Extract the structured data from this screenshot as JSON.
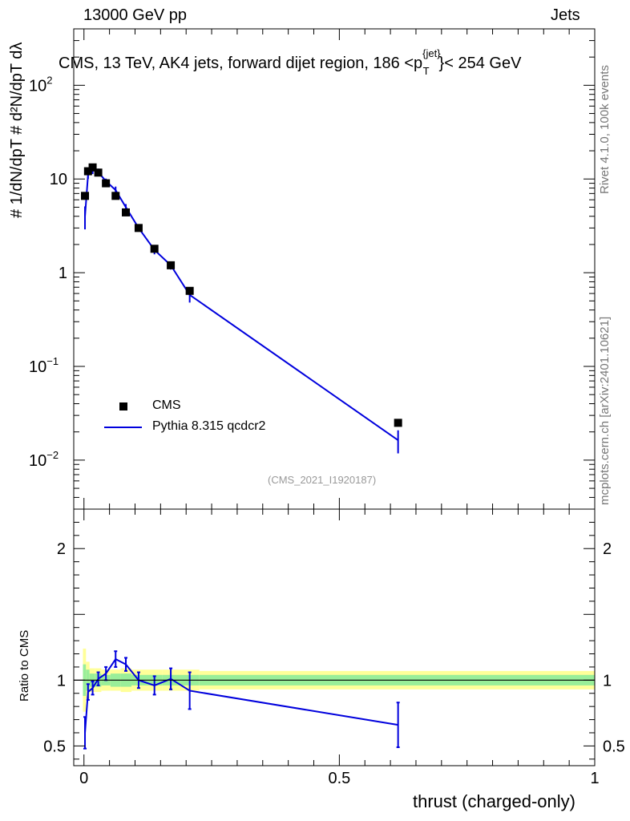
{
  "header": {
    "left_label": "13000 GeV pp",
    "right_label": "Jets"
  },
  "side_labels": {
    "rivet": "Rivet 4.1.0,  100k events",
    "mcplots": "mcplots.cern.ch [arXiv:2401.10621]"
  },
  "chart_data": {
    "type": "line",
    "title": "CMS, 13 TeV, AK4 jets, forward dijet region, 186 <p",
    "title_sup": "{jet}",
    "title_sub": "T",
    "title_end": "}< 254 GeV",
    "analysis_ref": "(CMS_2021_I1920187)",
    "ylabel_main": "# 1/dN/dpT # d²N/dpT dλ",
    "ylabel_ratio": "Ratio to CMS",
    "xlabel": "thrust (charged-only)",
    "xlim": [
      -0.02,
      1.0
    ],
    "main_panel": {
      "yscale": "log",
      "ylim": [
        0.003,
        400
      ],
      "y_ticks": [
        {
          "value": 0.01,
          "label_base": "10",
          "label_exp": "−2"
        },
        {
          "value": 0.1,
          "label_base": "10",
          "label_exp": "−1"
        },
        {
          "value": 1,
          "label_base": "1",
          "label_exp": ""
        },
        {
          "value": 10,
          "label_base": "10",
          "label_exp": ""
        },
        {
          "value": 100,
          "label_base": "10",
          "label_exp": "2"
        }
      ]
    },
    "ratio_panel": {
      "ylim": [
        0.35,
        2.3
      ],
      "y_ticks": [
        {
          "value": 0.5,
          "label": "0.5"
        },
        {
          "value": 1,
          "label": "1"
        },
        {
          "value": 2,
          "label": "2"
        }
      ]
    },
    "x_ticks": [
      {
        "value": 0,
        "label": "0"
      },
      {
        "value": 0.5,
        "label": "0.5"
      },
      {
        "value": 1,
        "label": "1"
      }
    ],
    "series": [
      {
        "name": "CMS",
        "kind": "markers",
        "color": "#000000",
        "x": [
          0.002,
          0.008,
          0.017,
          0.028,
          0.043,
          0.062,
          0.082,
          0.107,
          0.138,
          0.17,
          0.207,
          0.615
        ],
        "y": [
          6.6,
          12.1,
          13.3,
          11.7,
          9.0,
          6.6,
          4.4,
          3.0,
          1.8,
          1.2,
          0.64,
          0.025
        ]
      },
      {
        "name": "Pythia 8.315 qcdcr2",
        "kind": "line",
        "color": "#0000dd",
        "x": [
          0.002,
          0.008,
          0.017,
          0.028,
          0.043,
          0.062,
          0.082,
          0.107,
          0.138,
          0.17,
          0.207,
          0.615
        ],
        "y": [
          4.0,
          11.0,
          12.5,
          11.8,
          9.5,
          7.6,
          5.0,
          3.0,
          1.75,
          1.2,
          0.58,
          0.0163
        ],
        "err_lo": [
          1.1,
          1.0,
          1.2,
          1.1,
          0.6,
          0.7,
          0.4,
          0.2,
          0.18,
          0.12,
          0.1,
          0.0045
        ],
        "err_hi": [
          1.1,
          1.0,
          1.2,
          1.1,
          0.6,
          0.7,
          0.4,
          0.2,
          0.18,
          0.12,
          0.1,
          0.0045
        ]
      }
    ],
    "ratio": {
      "x": [
        0.002,
        0.008,
        0.017,
        0.028,
        0.043,
        0.062,
        0.082,
        0.107,
        0.138,
        0.17,
        0.207,
        0.615
      ],
      "y": [
        0.6,
        0.91,
        0.94,
        1.01,
        1.05,
        1.16,
        1.12,
        1.0,
        0.96,
        1.01,
        0.92,
        0.66
      ],
      "err": [
        0.12,
        0.06,
        0.05,
        0.05,
        0.05,
        0.06,
        0.05,
        0.06,
        0.07,
        0.08,
        0.14,
        0.17
      ],
      "band_edges": [
        -0.002,
        0.004,
        0.011,
        0.022,
        0.034,
        0.052,
        0.072,
        0.093,
        0.122,
        0.154,
        0.188,
        0.226,
        1.0
      ],
      "band_outer": [
        0.24,
        0.14,
        0.09,
        0.09,
        0.08,
        0.08,
        0.09,
        0.08,
        0.08,
        0.08,
        0.08,
        0.07
      ],
      "band_inner": [
        0.12,
        0.08,
        0.05,
        0.05,
        0.04,
        0.05,
        0.05,
        0.04,
        0.04,
        0.04,
        0.04,
        0.04
      ]
    }
  }
}
